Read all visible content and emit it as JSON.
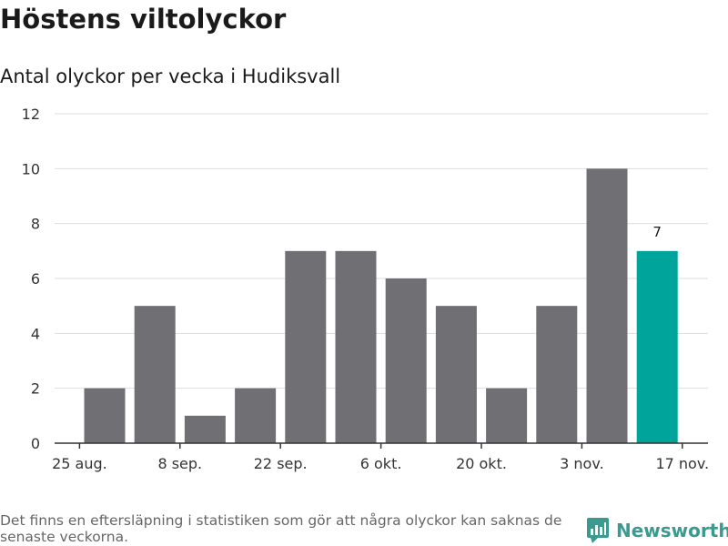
{
  "colors": {
    "bar": "#706f74",
    "highlight": "#00a49a",
    "grid": "#dddddd",
    "axis": "#333333",
    "brand": "#3a9a90"
  },
  "header": {
    "title": "Höstens viltolyckor",
    "subtitle": "Antal olyckor per vecka i Hudiksvall"
  },
  "footer": {
    "note": "Det finns en eftersläpning i statistiken som gör att några olyckor kan saknas de senaste veckorna.",
    "brand": "Newsworthy",
    "brand_icon": "newsworthy-logo-icon"
  },
  "chart_data": {
    "type": "bar",
    "title": "Höstens viltolyckor",
    "subtitle": "Antal olyckor per vecka i Hudiksvall",
    "xlabel": "",
    "ylabel": "",
    "ylim": [
      0,
      12
    ],
    "yticks": [
      0,
      2,
      4,
      6,
      8,
      10,
      12
    ],
    "grid": true,
    "x_tick_labels": [
      "25 aug.",
      "8 sep.",
      "22 sep.",
      "6 okt.",
      "20 okt.",
      "3 nov.",
      "17 nov."
    ],
    "bars": [
      {
        "week": 1,
        "value": 2
      },
      {
        "week": 2,
        "value": 5
      },
      {
        "week": 3,
        "value": 1
      },
      {
        "week": 4,
        "value": 2
      },
      {
        "week": 5,
        "value": 7
      },
      {
        "week": 6,
        "value": 7
      },
      {
        "week": 7,
        "value": 6
      },
      {
        "week": 8,
        "value": 5
      },
      {
        "week": 9,
        "value": 2
      },
      {
        "week": 10,
        "value": 5
      },
      {
        "week": 11,
        "value": 10
      },
      {
        "week": 12,
        "value": 7,
        "highlight": true,
        "label": "7"
      }
    ]
  }
}
